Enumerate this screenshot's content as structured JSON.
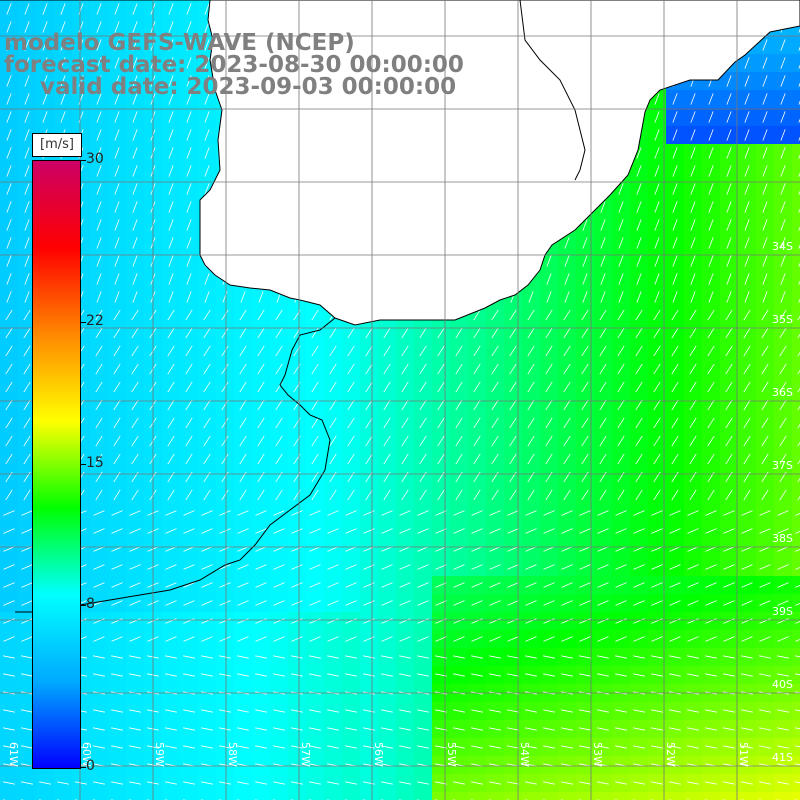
{
  "title": {
    "line1": "modelo GEFS-WAVE (NCEP)",
    "line2": "forecast date: 2023-08-30 00:00:00",
    "line3": "valid date: 2023-09-03 00:00:00"
  },
  "colorbar": {
    "unit": "[m/s]",
    "ticks": [
      "30",
      "22",
      "15",
      "8",
      "0"
    ],
    "values": [
      30,
      22,
      15,
      8,
      0
    ],
    "colors": [
      "#0000ff",
      "#00aaff",
      "#00ffff",
      "#00ff00",
      "#ffff00",
      "#ff8800",
      "#ff0000",
      "#cc0066"
    ]
  },
  "map": {
    "lat_labels": [
      "34S",
      "35S",
      "36S",
      "37S",
      "38S",
      "39S",
      "40S",
      "41S"
    ],
    "lon_labels": [
      "61W",
      "60W",
      "59W",
      "58W",
      "57W",
      "56W",
      "55W",
      "54W",
      "53W",
      "52W",
      "51W"
    ],
    "grid": true,
    "ocean_color": "#44ccff",
    "land_color": "#ffffff"
  }
}
